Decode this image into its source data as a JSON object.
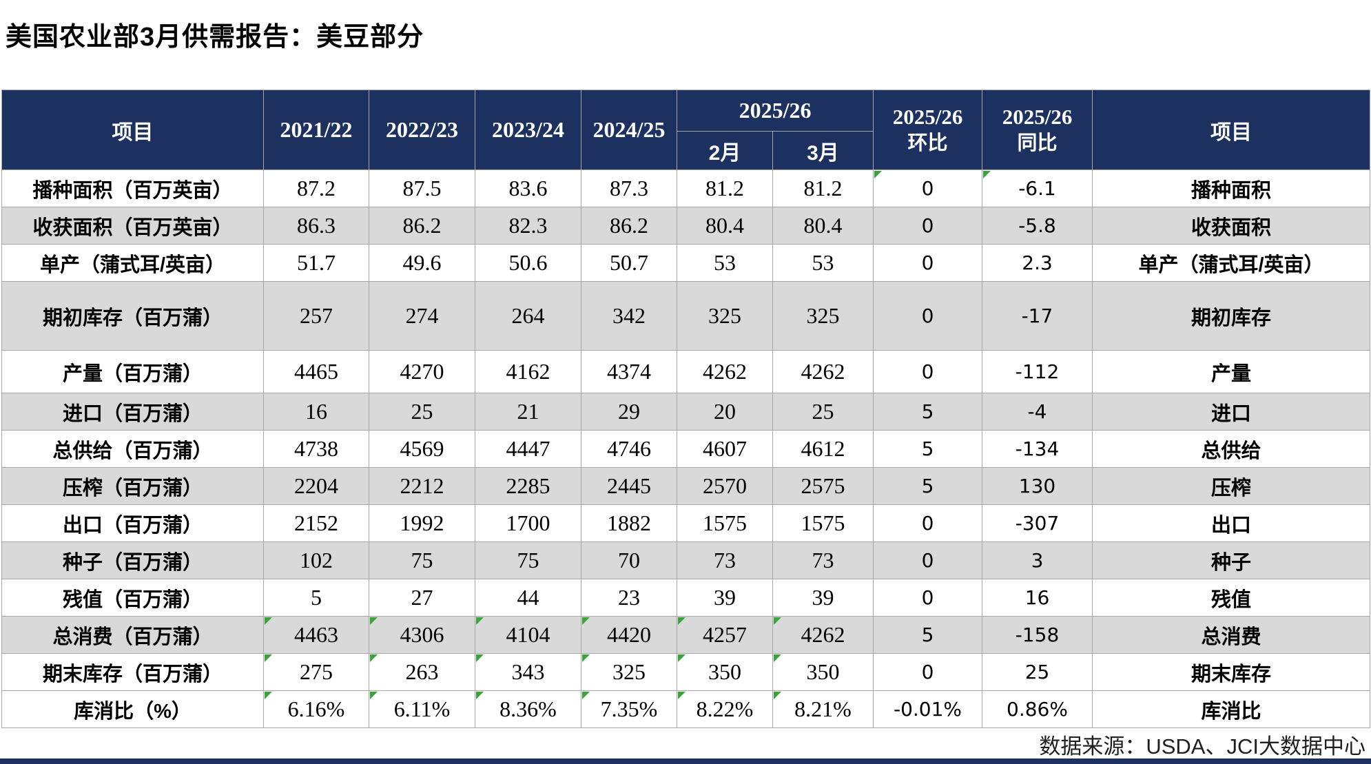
{
  "title": "美国农业部3月供需报告：美豆部分",
  "colors": {
    "header_bg": "#1c3160",
    "alt_row_bg": "#d9d9d9",
    "month_red": "#ff0000",
    "flag_green": "#3aa43a",
    "border_gray": "#a6a6a6"
  },
  "table": {
    "header": {
      "item_left": "项目",
      "years": [
        "2021/22",
        "2022/23",
        "2023/24",
        "2024/25"
      ],
      "forecast_year": "2025/26",
      "months": [
        "2月",
        "3月"
      ],
      "mom_year": "2025/26",
      "mom_label": "环比",
      "yoy_year": "2025/26",
      "yoy_label": "同比",
      "item_right": "项目"
    },
    "rows": [
      {
        "label": "播种面积（百万英亩）",
        "values": [
          "87.2",
          "87.5",
          "83.6",
          "87.3",
          "81.2",
          "81.2"
        ],
        "mom": "0",
        "yoy": "-6.1",
        "right_label": "播种面积",
        "flagged": [
          6,
          7
        ]
      },
      {
        "label": "收获面积（百万英亩）",
        "values": [
          "86.3",
          "86.2",
          "82.3",
          "86.2",
          "80.4",
          "80.4"
        ],
        "mom": "0",
        "yoy": "-5.8",
        "right_label": "收获面积",
        "flagged": []
      },
      {
        "label": "单产（蒲式耳/英亩）",
        "values": [
          "51.7",
          "49.6",
          "50.6",
          "50.7",
          "53",
          "53"
        ],
        "mom": "0",
        "yoy": "2.3",
        "right_label": "单产（蒲式耳/英亩）",
        "flagged": []
      },
      {
        "label": "期初库存（百万蒲）",
        "values": [
          "257",
          "274",
          "264",
          "342",
          "325",
          "325"
        ],
        "mom": "0",
        "yoy": "-17",
        "right_label": "期初库存",
        "flagged": []
      },
      {
        "label": "产量（百万蒲）",
        "values": [
          "4465",
          "4270",
          "4162",
          "4374",
          "4262",
          "4262"
        ],
        "mom": "0",
        "yoy": "-112",
        "right_label": "产量",
        "flagged": []
      },
      {
        "label": "进口（百万蒲）",
        "values": [
          "16",
          "25",
          "21",
          "29",
          "20",
          "25"
        ],
        "mom": "5",
        "yoy": "-4",
        "right_label": "进口",
        "flagged": []
      },
      {
        "label": "总供给（百万蒲）",
        "values": [
          "4738",
          "4569",
          "4447",
          "4746",
          "4607",
          "4612"
        ],
        "mom": "5",
        "yoy": "-134",
        "right_label": "总供给",
        "flagged": []
      },
      {
        "label": "压榨（百万蒲）",
        "values": [
          "2204",
          "2212",
          "2285",
          "2445",
          "2570",
          "2575"
        ],
        "mom": "5",
        "yoy": "130",
        "right_label": "压榨",
        "flagged": []
      },
      {
        "label": "出口（百万蒲）",
        "values": [
          "2152",
          "1992",
          "1700",
          "1882",
          "1575",
          "1575"
        ],
        "mom": "0",
        "yoy": "-307",
        "right_label": "出口",
        "flagged": []
      },
      {
        "label": "种子（百万蒲）",
        "values": [
          "102",
          "75",
          "75",
          "70",
          "73",
          "73"
        ],
        "mom": "0",
        "yoy": "3",
        "right_label": "种子",
        "flagged": []
      },
      {
        "label": "残值（百万蒲）",
        "values": [
          "5",
          "27",
          "44",
          "23",
          "39",
          "39"
        ],
        "mom": "0",
        "yoy": "16",
        "right_label": "残值",
        "flagged": []
      },
      {
        "label": "总消费（百万蒲）",
        "values": [
          "4463",
          "4306",
          "4104",
          "4420",
          "4257",
          "4262"
        ],
        "mom": "5",
        "yoy": "-158",
        "right_label": "总消费",
        "flagged": [
          0,
          1,
          2,
          3,
          4,
          5
        ]
      },
      {
        "label": "期末库存（百万蒲）",
        "values": [
          "275",
          "263",
          "343",
          "325",
          "350",
          "350"
        ],
        "mom": "0",
        "yoy": "25",
        "right_label": "期末库存",
        "flagged": [
          0,
          1,
          2,
          3,
          4,
          5
        ]
      },
      {
        "label": "库消比（%）",
        "values": [
          "6.16%",
          "6.11%",
          "8.36%",
          "7.35%",
          "8.22%",
          "8.21%"
        ],
        "mom": "-0.01%",
        "yoy": "0.86%",
        "right_label": "库消比",
        "flagged": [
          0,
          1,
          2,
          3,
          4,
          5
        ]
      }
    ]
  },
  "footer": {
    "source": "数据来源：USDA、JCI大数据中心"
  }
}
